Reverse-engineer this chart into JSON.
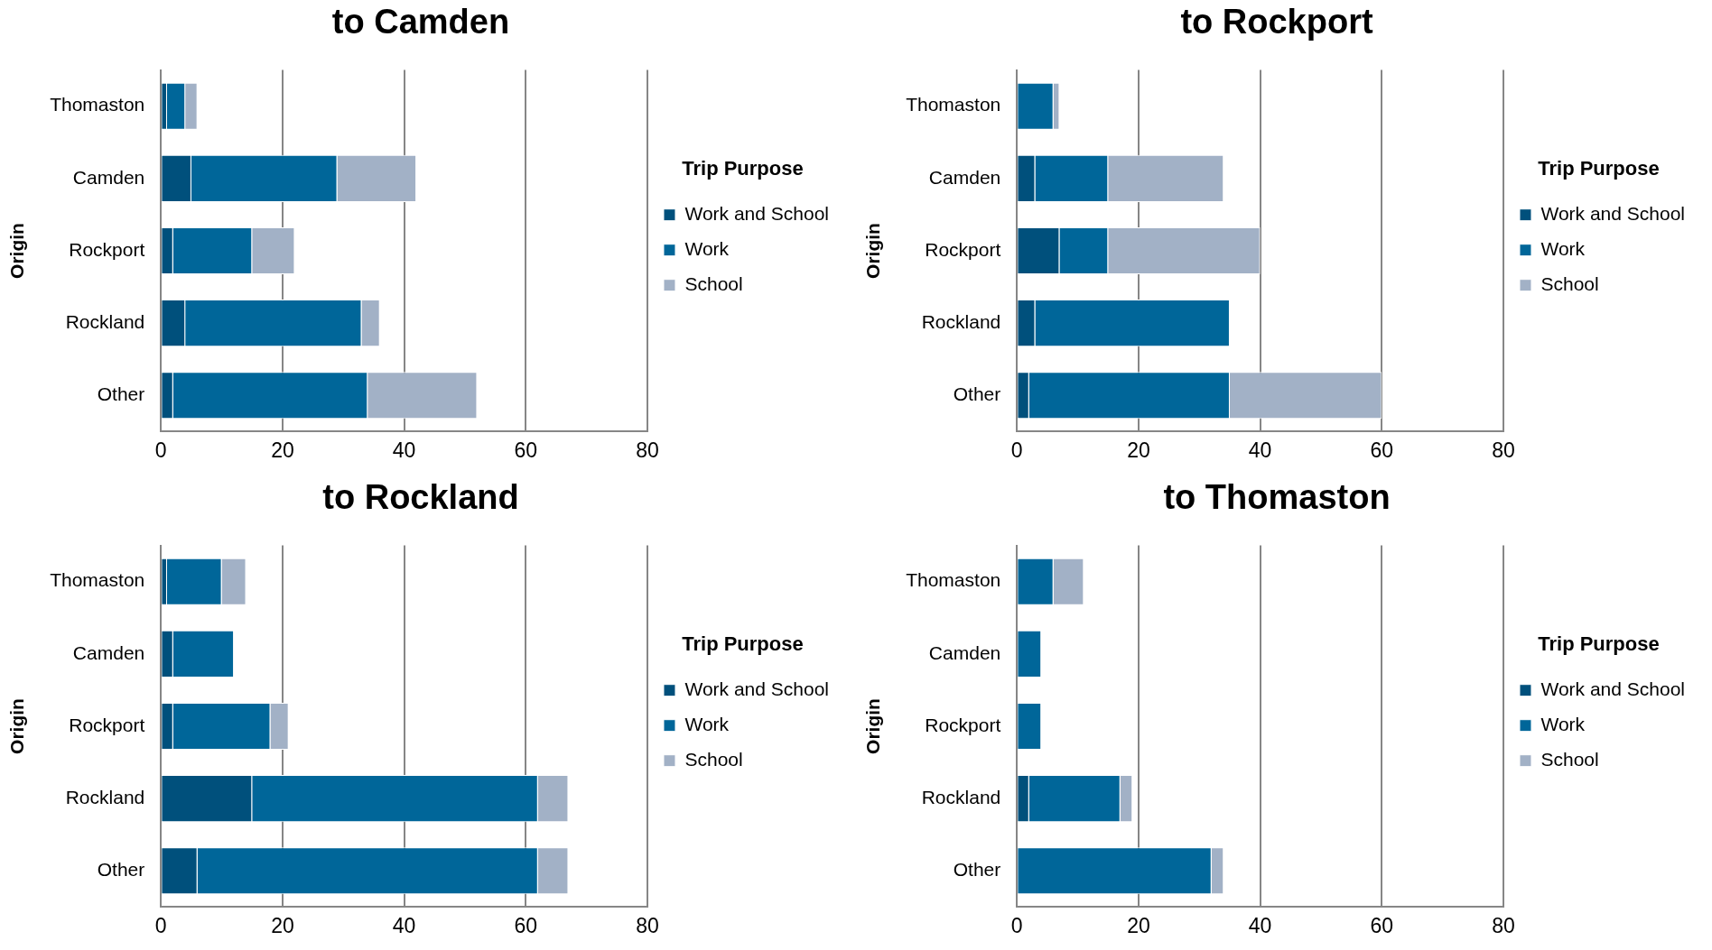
{
  "chart_data": [
    {
      "type": "bar",
      "orientation": "horizontal",
      "stacked": true,
      "title": "to Camden",
      "ylabel": "Origin",
      "legend_title": "Trip Purpose",
      "legend": "right",
      "grid": "x",
      "categories": [
        "Thomaston",
        "Camden",
        "Rockport",
        "Rockland",
        "Other"
      ],
      "xlim": [
        0,
        80
      ],
      "xticks": [
        0,
        20,
        40,
        60,
        80
      ],
      "series": [
        {
          "name": "Work and School",
          "color": "#00507c",
          "values": [
            1,
            5,
            2,
            4,
            2
          ]
        },
        {
          "name": "Work",
          "color": "#006699",
          "values": [
            3,
            24,
            13,
            29,
            32
          ]
        },
        {
          "name": "School",
          "color": "#a2b1c6",
          "values": [
            2,
            13,
            7,
            3,
            18
          ]
        }
      ]
    },
    {
      "type": "bar",
      "orientation": "horizontal",
      "stacked": true,
      "title": "to Rockport",
      "ylabel": "Origin",
      "legend_title": "Trip Purpose",
      "legend": "right",
      "grid": "x",
      "categories": [
        "Thomaston",
        "Camden",
        "Rockport",
        "Rockland",
        "Other"
      ],
      "xlim": [
        0,
        80
      ],
      "xticks": [
        0,
        20,
        40,
        60,
        80
      ],
      "series": [
        {
          "name": "Work and School",
          "color": "#00507c",
          "values": [
            0,
            3,
            7,
            3,
            2
          ]
        },
        {
          "name": "Work",
          "color": "#006699",
          "values": [
            6,
            12,
            8,
            32,
            33
          ]
        },
        {
          "name": "School",
          "color": "#a2b1c6",
          "values": [
            1,
            19,
            25,
            0,
            25
          ]
        }
      ]
    },
    {
      "type": "bar",
      "orientation": "horizontal",
      "stacked": true,
      "title": "to Rockland",
      "ylabel": "Origin",
      "legend_title": "Trip Purpose",
      "legend": "right",
      "grid": "x",
      "categories": [
        "Thomaston",
        "Camden",
        "Rockport",
        "Rockland",
        "Other"
      ],
      "xlim": [
        0,
        80
      ],
      "xticks": [
        0,
        20,
        40,
        60,
        80
      ],
      "series": [
        {
          "name": "Work and School",
          "color": "#00507c",
          "values": [
            1,
            2,
            2,
            15,
            6
          ]
        },
        {
          "name": "Work",
          "color": "#006699",
          "values": [
            9,
            10,
            16,
            47,
            56
          ]
        },
        {
          "name": "School",
          "color": "#a2b1c6",
          "values": [
            4,
            0,
            3,
            5,
            5
          ]
        }
      ]
    },
    {
      "type": "bar",
      "orientation": "horizontal",
      "stacked": true,
      "title": "to Thomaston",
      "ylabel": "Origin",
      "legend_title": "Trip Purpose",
      "legend": "right",
      "grid": "x",
      "categories": [
        "Thomaston",
        "Camden",
        "Rockport",
        "Rockland",
        "Other"
      ],
      "xlim": [
        0,
        80
      ],
      "xticks": [
        0,
        20,
        40,
        60,
        80
      ],
      "series": [
        {
          "name": "Work and School",
          "color": "#00507c",
          "values": [
            0,
            0,
            0,
            2,
            0
          ]
        },
        {
          "name": "Work",
          "color": "#006699",
          "values": [
            6,
            4,
            4,
            15,
            32
          ]
        },
        {
          "name": "School",
          "color": "#a2b1c6",
          "values": [
            5,
            0,
            0,
            2,
            2
          ]
        }
      ]
    }
  ]
}
